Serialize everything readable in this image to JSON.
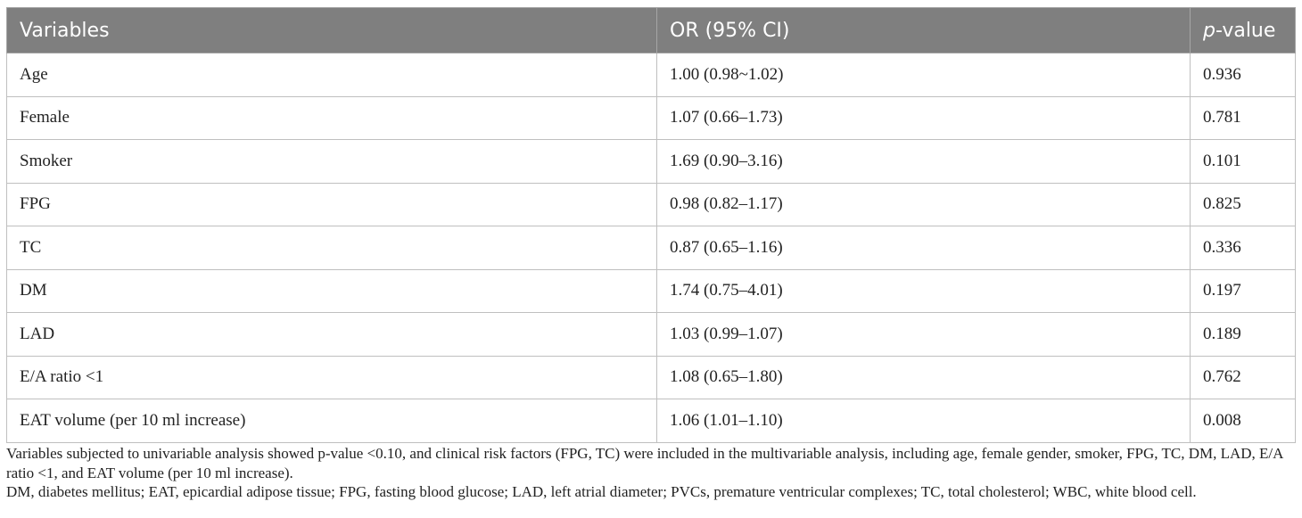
{
  "table": {
    "headers": {
      "variables": "Variables",
      "or_ci": "OR (95% CI)",
      "p_italic": "p",
      "p_rest": "-value"
    },
    "rows": [
      {
        "variable": "Age",
        "or_ci": "1.00 (0.98~1.02)",
        "p": "0.936"
      },
      {
        "variable": "Female",
        "or_ci": "1.07 (0.66–1.73)",
        "p": "0.781"
      },
      {
        "variable": "Smoker",
        "or_ci": "1.69 (0.90–3.16)",
        "p": "0.101"
      },
      {
        "variable": "FPG",
        "or_ci": "0.98 (0.82–1.17)",
        "p": "0.825"
      },
      {
        "variable": "TC",
        "or_ci": "0.87 (0.65–1.16)",
        "p": "0.336"
      },
      {
        "variable": "DM",
        "or_ci": "1.74 (0.75–4.01)",
        "p": "0.197"
      },
      {
        "variable": "LAD",
        "or_ci": "1.03 (0.99–1.07)",
        "p": "0.189"
      },
      {
        "variable": "E/A ratio <1",
        "or_ci": "1.08 (0.65–1.80)",
        "p": "0.762"
      },
      {
        "variable": "EAT volume (per 10 ml increase)",
        "or_ci": "1.06 (1.01–1.10)",
        "p": "0.008"
      }
    ]
  },
  "notes": {
    "line1": "Variables subjected to univariable analysis showed p-value <0.10, and clinical risk factors (FPG, TC) were included in the multivariable analysis, including age, female gender, smoker, FPG, TC, DM, LAD, E/A ratio <1, and EAT volume (per 10 ml increase).",
    "line2": "DM, diabetes mellitus; EAT, epicardial adipose tissue; FPG, fasting blood glucose; LAD, left atrial diameter; PVCs, premature ventricular complexes; TC, total cholesterol; WBC, white blood cell."
  },
  "colors": {
    "header_bg": "#7f7f7f",
    "header_text": "#ffffff",
    "border": "#bfbfbf"
  }
}
